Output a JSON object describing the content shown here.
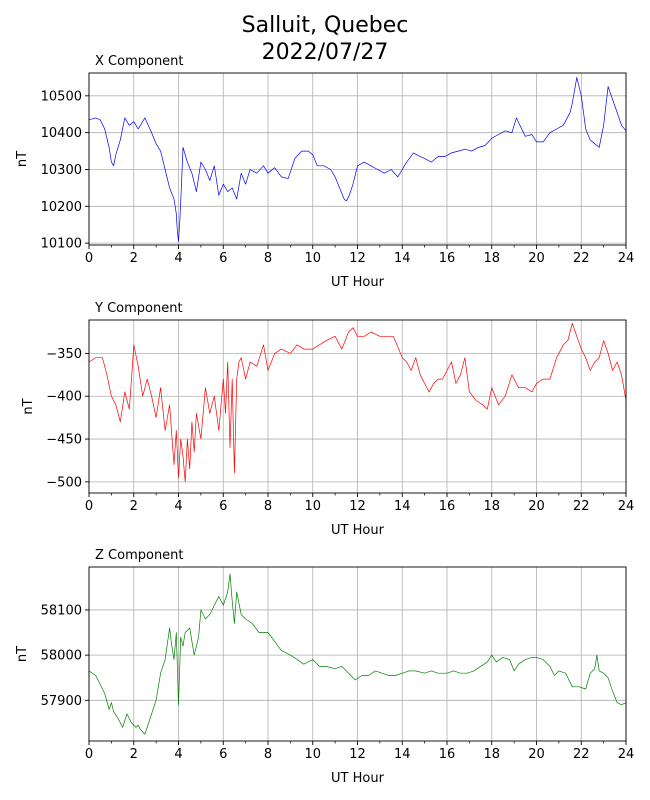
{
  "figure": {
    "title_line1": "Salluit, Quebec",
    "title_line2": "2022/07/27"
  },
  "colors": {
    "x": "#0000ff",
    "y": "#ff0000",
    "z": "#008000",
    "grid": "#b0b0b0"
  },
  "chart_data": [
    {
      "type": "line",
      "title": "X Component",
      "xlabel": "UT Hour",
      "ylabel": "nT",
      "xlim": [
        0,
        24
      ],
      "ylim": [
        10095,
        10562
      ],
      "xticks": [
        0,
        2,
        4,
        6,
        8,
        10,
        12,
        14,
        16,
        18,
        20,
        22,
        24
      ],
      "yticks": [
        10100,
        10200,
        10300,
        10400,
        10500
      ],
      "grid": true,
      "series": [
        {
          "color": "#0000ff",
          "x": [
            0,
            0.3,
            0.5,
            0.7,
            0.9,
            1.0,
            1.1,
            1.2,
            1.4,
            1.6,
            1.8,
            2.0,
            2.2,
            2.5,
            2.8,
            3.0,
            3.2,
            3.4,
            3.6,
            3.8,
            3.9,
            3.95,
            4.0,
            4.05,
            4.1,
            4.2,
            4.4,
            4.6,
            4.8,
            5.0,
            5.2,
            5.4,
            5.6,
            5.8,
            6.0,
            6.2,
            6.4,
            6.6,
            6.8,
            7.0,
            7.2,
            7.5,
            7.8,
            8.0,
            8.3,
            8.6,
            8.9,
            9.2,
            9.5,
            9.8,
            10.0,
            10.2,
            10.5,
            10.8,
            11.0,
            11.2,
            11.4,
            11.5,
            11.6,
            11.8,
            12.0,
            12.3,
            12.6,
            12.9,
            13.2,
            13.5,
            13.8,
            14.0,
            14.2,
            14.5,
            14.8,
            15.0,
            15.3,
            15.6,
            15.9,
            16.2,
            16.5,
            16.8,
            17.1,
            17.4,
            17.7,
            18.0,
            18.3,
            18.6,
            18.9,
            19.1,
            19.3,
            19.5,
            19.8,
            20.0,
            20.3,
            20.6,
            20.9,
            21.2,
            21.5,
            21.6,
            21.8,
            22.0,
            22.2,
            22.4,
            22.6,
            22.8,
            23.0,
            23.2,
            23.4,
            23.6,
            23.8,
            24.0
          ],
          "values": [
            10435,
            10440,
            10435,
            10410,
            10360,
            10320,
            10310,
            10340,
            10380,
            10440,
            10420,
            10430,
            10410,
            10440,
            10400,
            10370,
            10350,
            10300,
            10250,
            10220,
            10180,
            10130,
            10105,
            10150,
            10210,
            10360,
            10320,
            10290,
            10240,
            10320,
            10300,
            10270,
            10310,
            10230,
            10260,
            10240,
            10250,
            10220,
            10290,
            10260,
            10300,
            10290,
            10310,
            10290,
            10305,
            10280,
            10275,
            10330,
            10350,
            10350,
            10340,
            10310,
            10310,
            10300,
            10280,
            10250,
            10220,
            10215,
            10225,
            10260,
            10310,
            10320,
            10310,
            10300,
            10290,
            10300,
            10280,
            10300,
            10320,
            10345,
            10335,
            10330,
            10320,
            10335,
            10335,
            10345,
            10350,
            10355,
            10350,
            10360,
            10365,
            10385,
            10395,
            10405,
            10400,
            10440,
            10415,
            10390,
            10395,
            10375,
            10375,
            10400,
            10410,
            10420,
            10455,
            10480,
            10550,
            10500,
            10410,
            10380,
            10370,
            10360,
            10420,
            10525,
            10490,
            10455,
            10420,
            10405
          ]
        }
      ]
    },
    {
      "type": "line",
      "title": "Y Component",
      "xlabel": "UT Hour",
      "ylabel": "nT",
      "xlim": [
        0,
        24
      ],
      "ylim": [
        -513,
        -311
      ],
      "xticks": [
        0,
        2,
        4,
        6,
        8,
        10,
        12,
        14,
        16,
        18,
        20,
        22,
        24
      ],
      "yticks": [
        -500,
        -450,
        -400,
        -350
      ],
      "grid": true,
      "series": [
        {
          "color": "#ff0000",
          "x": [
            0,
            0.3,
            0.6,
            0.8,
            1.0,
            1.2,
            1.4,
            1.6,
            1.8,
            1.9,
            2.0,
            2.2,
            2.4,
            2.6,
            2.8,
            3.0,
            3.2,
            3.4,
            3.6,
            3.8,
            3.9,
            4.0,
            4.1,
            4.2,
            4.3,
            4.4,
            4.5,
            4.6,
            4.7,
            4.8,
            5.0,
            5.2,
            5.4,
            5.6,
            5.8,
            6.0,
            6.1,
            6.2,
            6.3,
            6.4,
            6.5,
            6.6,
            6.7,
            6.8,
            7.0,
            7.2,
            7.5,
            7.8,
            8.0,
            8.3,
            8.6,
            9.0,
            9.3,
            9.6,
            10.0,
            10.3,
            10.6,
            11.0,
            11.3,
            11.6,
            11.8,
            12.0,
            12.3,
            12.6,
            13.0,
            13.3,
            13.6,
            14.0,
            14.2,
            14.4,
            14.6,
            14.8,
            15.0,
            15.2,
            15.4,
            15.6,
            15.8,
            16.0,
            16.2,
            16.4,
            16.6,
            16.8,
            17.0,
            17.3,
            17.6,
            17.8,
            18.0,
            18.3,
            18.6,
            18.9,
            19.2,
            19.5,
            19.8,
            20.0,
            20.3,
            20.6,
            20.9,
            21.2,
            21.4,
            21.6,
            21.8,
            22.0,
            22.2,
            22.4,
            22.6,
            22.8,
            23.0,
            23.2,
            23.4,
            23.6,
            23.8,
            24.0
          ],
          "values": [
            -360,
            -355,
            -355,
            -375,
            -400,
            -410,
            -430,
            -395,
            -415,
            -380,
            -340,
            -365,
            -400,
            -380,
            -400,
            -425,
            -390,
            -440,
            -410,
            -480,
            -440,
            -495,
            -450,
            -470,
            -500,
            -450,
            -485,
            -430,
            -465,
            -420,
            -450,
            -390,
            -420,
            -400,
            -440,
            -380,
            -420,
            -360,
            -460,
            -380,
            -490,
            -380,
            -360,
            -355,
            -380,
            -360,
            -365,
            -340,
            -370,
            -350,
            -345,
            -350,
            -340,
            -345,
            -345,
            -340,
            -335,
            -330,
            -345,
            -325,
            -320,
            -330,
            -330,
            -325,
            -330,
            -330,
            -330,
            -355,
            -360,
            -370,
            -355,
            -375,
            -385,
            -395,
            -385,
            -380,
            -380,
            -370,
            -360,
            -385,
            -375,
            -355,
            -395,
            -405,
            -410,
            -415,
            -390,
            -410,
            -400,
            -375,
            -390,
            -390,
            -395,
            -385,
            -380,
            -380,
            -355,
            -340,
            -335,
            -315,
            -330,
            -345,
            -355,
            -370,
            -360,
            -355,
            -335,
            -350,
            -370,
            -360,
            -375,
            -405
          ]
        }
      ]
    },
    {
      "type": "line",
      "title": "Z Component",
      "xlabel": "UT Hour",
      "ylabel": "nT",
      "xlim": [
        0,
        24
      ],
      "ylim": [
        57810,
        58195
      ],
      "xticks": [
        0,
        2,
        4,
        6,
        8,
        10,
        12,
        14,
        16,
        18,
        20,
        22,
        24
      ],
      "yticks": [
        57900,
        58000,
        58100
      ],
      "grid": true,
      "series": [
        {
          "color": "#008000",
          "x": [
            0,
            0.3,
            0.5,
            0.7,
            0.9,
            1.0,
            1.1,
            1.3,
            1.5,
            1.7,
            1.9,
            2.0,
            2.1,
            2.2,
            2.3,
            2.4,
            2.5,
            2.6,
            2.8,
            3.0,
            3.2,
            3.4,
            3.6,
            3.7,
            3.8,
            3.9,
            4.0,
            4.1,
            4.2,
            4.3,
            4.5,
            4.7,
            4.9,
            5.0,
            5.2,
            5.4,
            5.6,
            5.8,
            6.0,
            6.2,
            6.3,
            6.4,
            6.5,
            6.6,
            6.8,
            7.0,
            7.3,
            7.6,
            8.0,
            8.3,
            8.6,
            9.0,
            9.3,
            9.6,
            10.0,
            10.3,
            10.6,
            11.0,
            11.3,
            11.6,
            11.9,
            12.2,
            12.5,
            12.8,
            13.1,
            13.4,
            13.7,
            14.0,
            14.3,
            14.6,
            15.0,
            15.3,
            15.6,
            16.0,
            16.3,
            16.6,
            16.9,
            17.2,
            17.5,
            17.8,
            18.0,
            18.2,
            18.5,
            18.8,
            19.0,
            19.2,
            19.5,
            19.8,
            20.0,
            20.3,
            20.6,
            20.8,
            21.0,
            21.3,
            21.6,
            21.9,
            22.2,
            22.4,
            22.6,
            22.7,
            22.8,
            23.0,
            23.2,
            23.4,
            23.6,
            23.8,
            24.0
          ],
          "values": [
            57965,
            57955,
            57935,
            57915,
            57880,
            57895,
            57875,
            57860,
            57840,
            57870,
            57850,
            57845,
            57840,
            57845,
            57835,
            57830,
            57825,
            57840,
            57870,
            57900,
            57960,
            57990,
            58060,
            58020,
            57990,
            58050,
            57890,
            58040,
            58020,
            58050,
            58060,
            58000,
            58040,
            58100,
            58080,
            58090,
            58110,
            58130,
            58110,
            58140,
            58180,
            58120,
            58070,
            58140,
            58090,
            58080,
            58070,
            58050,
            58050,
            58030,
            58010,
            58000,
            57990,
            57980,
            57990,
            57975,
            57975,
            57970,
            57975,
            57960,
            57945,
            57955,
            57955,
            57965,
            57960,
            57955,
            57955,
            57960,
            57965,
            57965,
            57960,
            57965,
            57960,
            57960,
            57965,
            57960,
            57960,
            57965,
            57975,
            57985,
            58000,
            57985,
            57995,
            57990,
            57965,
            57980,
            57990,
            57995,
            57995,
            57990,
            57975,
            57955,
            57965,
            57960,
            57930,
            57930,
            57925,
            57960,
            57970,
            58000,
            57965,
            57960,
            57950,
            57920,
            57895,
            57890,
            57895
          ]
        }
      ]
    }
  ]
}
